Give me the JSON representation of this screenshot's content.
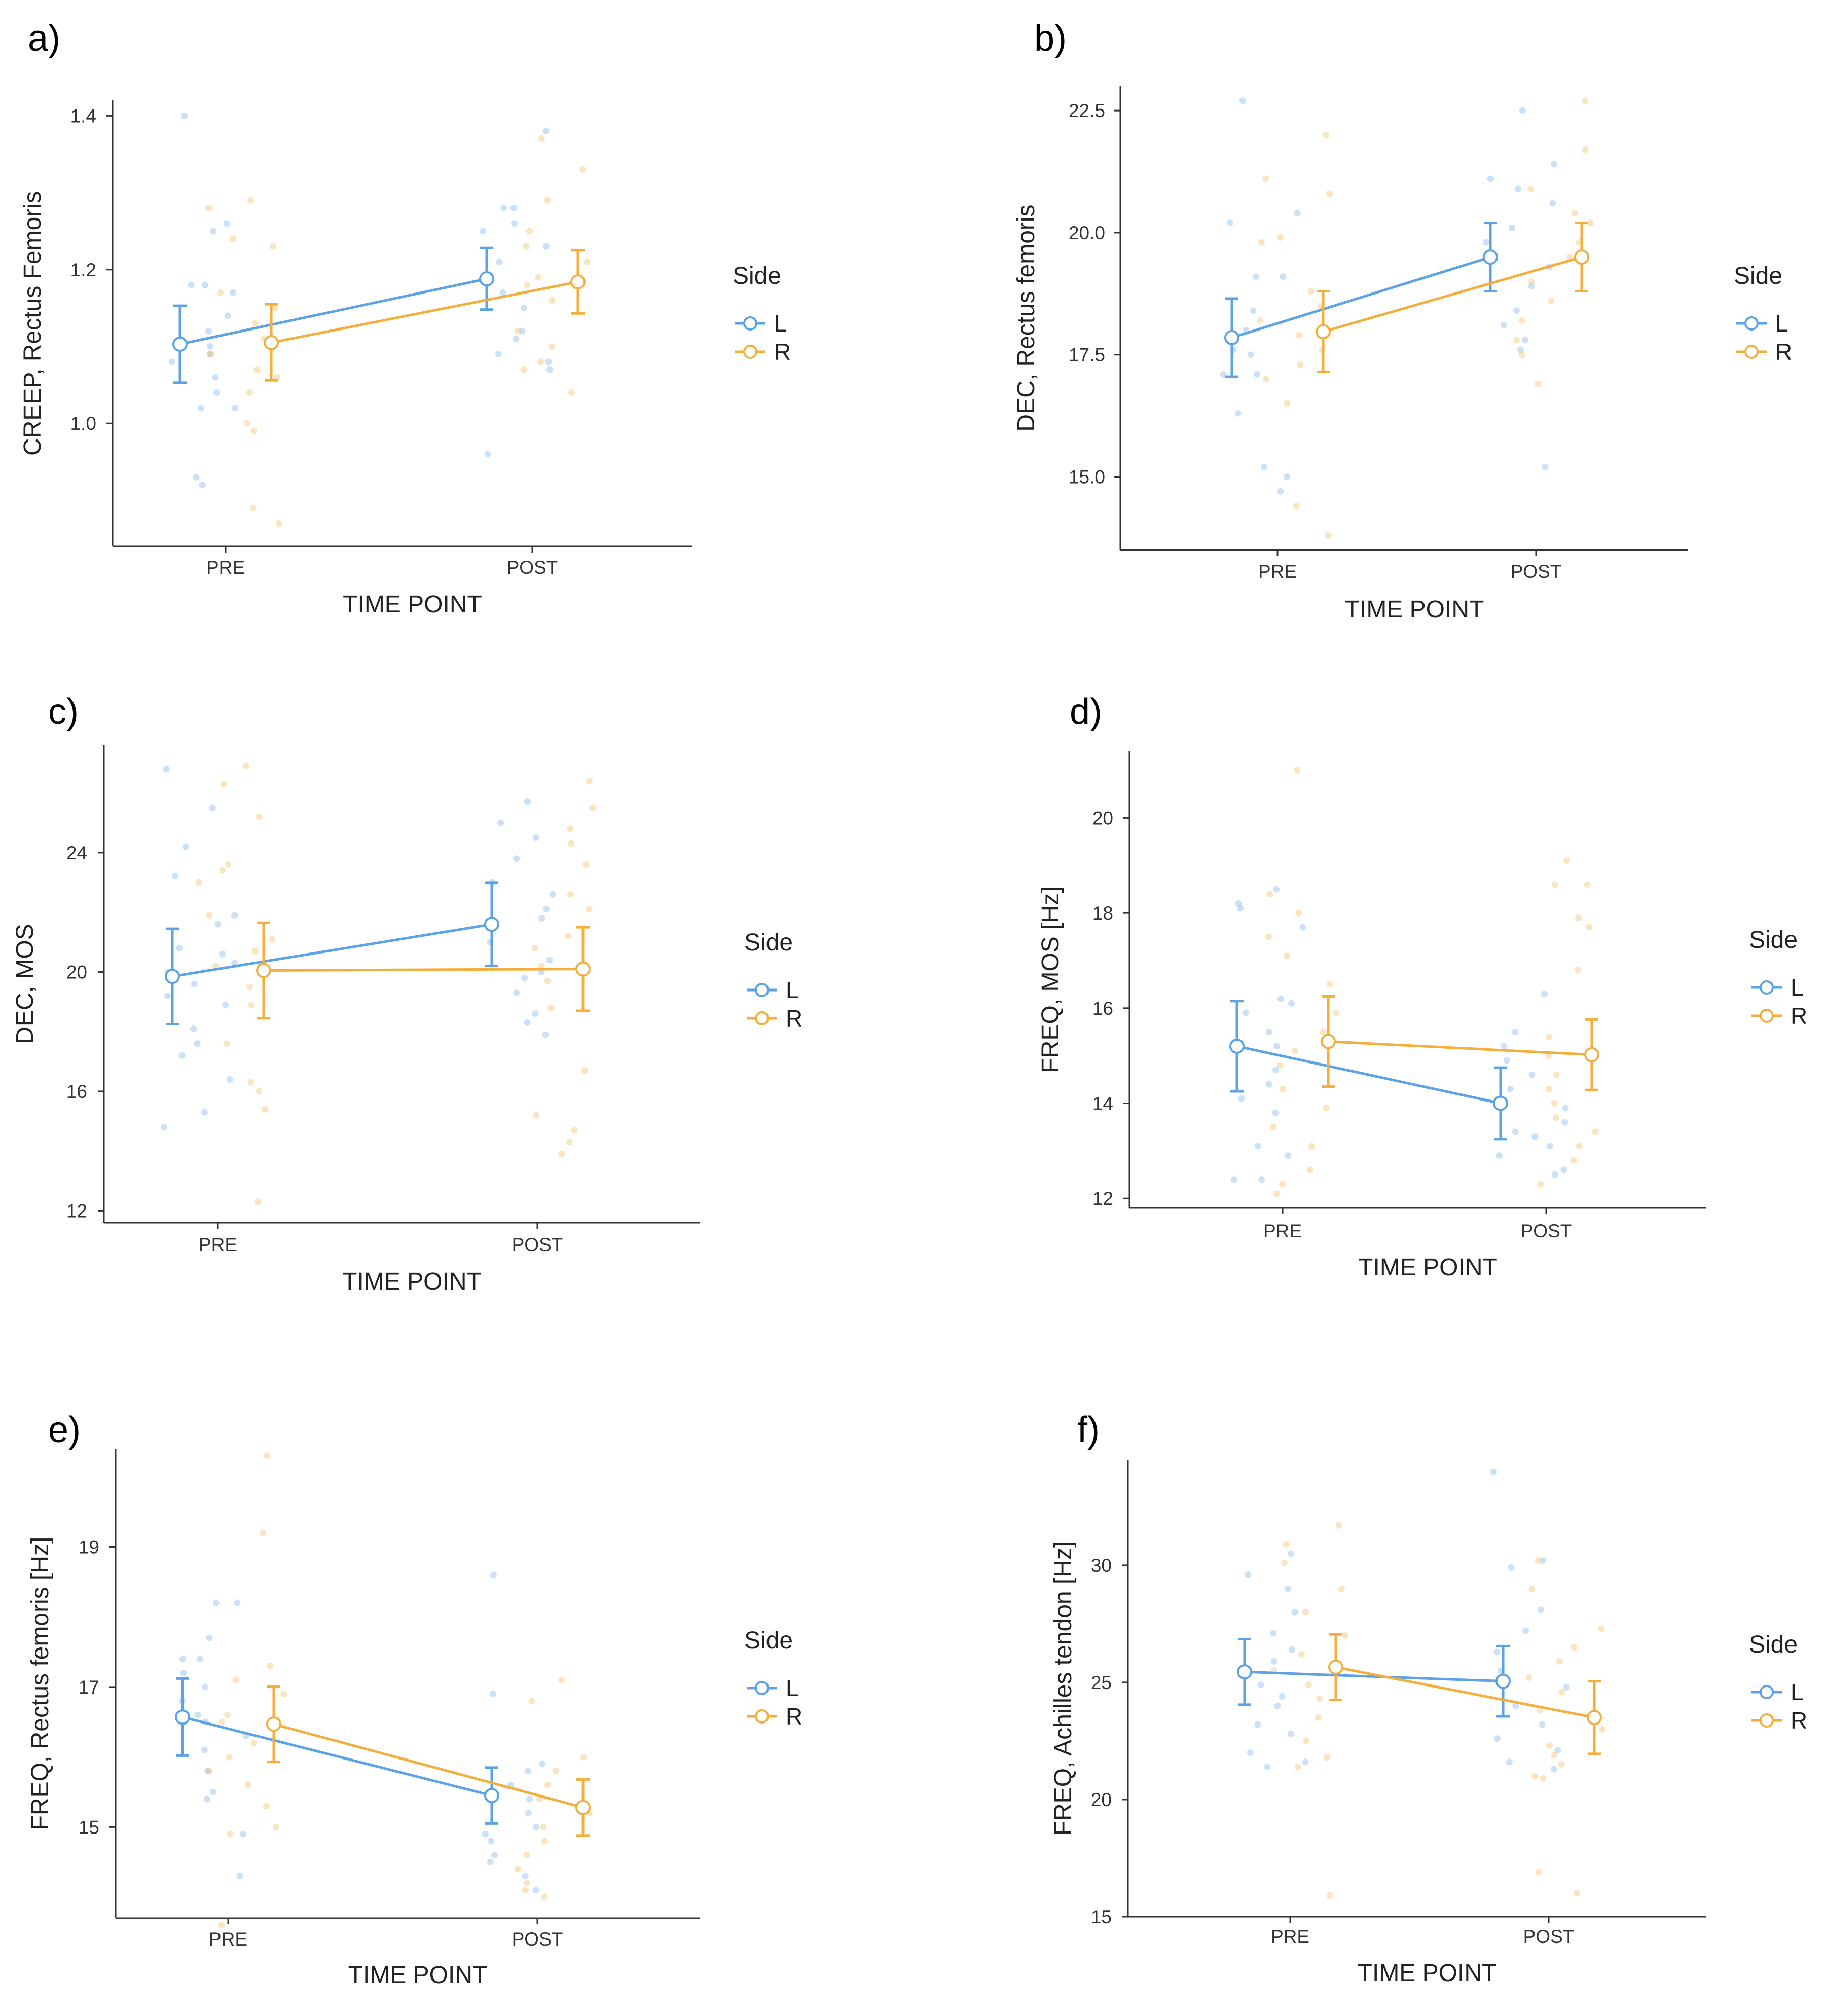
{
  "colors": {
    "L": "#5ba3e6",
    "R": "#f4ae3c",
    "axis": "#333333"
  },
  "legend": {
    "title": "Side",
    "labels": [
      "L",
      "R"
    ]
  },
  "chart_data": [
    {
      "panel": "a)",
      "type": "line",
      "xlabel": "TIME POINT",
      "ylabel": "CREEP, Rectus Femoris",
      "categories": [
        "PRE",
        "POST"
      ],
      "ylim": [
        0.84,
        1.42
      ],
      "yticks": [
        1.0,
        1.2,
        1.4
      ],
      "ytick_labels": [
        "1.0",
        "1.2",
        "1.4"
      ],
      "series": [
        {
          "name": "L",
          "values": [
            1.103,
            1.188
          ],
          "err_low": [
            1.053,
            1.148
          ],
          "err_high": [
            1.153,
            1.228
          ],
          "points": {
            "PRE": [
              1.4,
              1.26,
              1.25,
              1.18,
              1.18,
              1.17,
              1.14,
              1.12,
              1.1,
              1.09,
              1.08,
              1.06,
              1.04,
              1.02,
              1.02,
              0.93,
              0.92
            ],
            "POST": [
              1.38,
              1.28,
              1.28,
              1.26,
              1.25,
              1.23,
              1.21,
              1.17,
              1.15,
              1.12,
              1.11,
              1.09,
              1.08,
              1.07,
              0.96
            ]
          }
        },
        {
          "name": "R",
          "values": [
            1.105,
            1.184
          ],
          "err_low": [
            1.056,
            1.143
          ],
          "err_high": [
            1.155,
            1.225
          ],
          "points": {
            "PRE": [
              1.29,
              1.28,
              1.24,
              1.23,
              1.17,
              1.15,
              1.13,
              1.11,
              1.09,
              1.07,
              1.06,
              1.04,
              1.0,
              0.99,
              0.89,
              0.87
            ],
            "POST": [
              1.37,
              1.33,
              1.29,
              1.25,
              1.23,
              1.21,
              1.19,
              1.18,
              1.16,
              1.12,
              1.1,
              1.08,
              1.07,
              1.04
            ]
          }
        }
      ]
    },
    {
      "panel": "b)",
      "type": "line",
      "xlabel": "TIME POINT",
      "ylabel": "DEC, Rectus femoris",
      "categories": [
        "PRE",
        "POST"
      ],
      "ylim": [
        13.5,
        23.0
      ],
      "yticks": [
        15.0,
        17.5,
        20.0,
        22.5
      ],
      "ytick_labels": [
        "15.0",
        "17.5",
        "20.0",
        "22.5"
      ],
      "series": [
        {
          "name": "L",
          "values": [
            17.85,
            19.5
          ],
          "err_low": [
            17.05,
            18.8
          ],
          "err_high": [
            18.65,
            20.2
          ],
          "points": {
            "PRE": [
              22.7,
              20.4,
              20.2,
              19.1,
              19.1,
              18.4,
              18.0,
              17.6,
              17.5,
              17.1,
              17.1,
              16.3,
              15.2,
              15.0,
              14.7
            ],
            "POST": [
              22.5,
              21.4,
              21.1,
              20.9,
              20.6,
              20.1,
              19.8,
              19.5,
              19.3,
              18.9,
              18.4,
              18.1,
              17.8,
              17.6,
              15.2
            ]
          }
        },
        {
          "name": "R",
          "values": [
            17.97,
            19.5
          ],
          "err_low": [
            17.15,
            18.8
          ],
          "err_high": [
            18.8,
            20.2
          ],
          "points": {
            "PRE": [
              22.0,
              21.1,
              20.8,
              19.9,
              19.8,
              18.8,
              18.5,
              18.2,
              17.9,
              17.6,
              17.3,
              17.0,
              16.5,
              14.4,
              13.8
            ],
            "POST": [
              22.7,
              21.7,
              20.9,
              20.4,
              20.2,
              19.8,
              19.5,
              19.0,
              18.6,
              18.2,
              17.8,
              17.5,
              16.9
            ]
          }
        }
      ]
    },
    {
      "panel": "c)",
      "type": "line",
      "xlabel": "TIME POINT",
      "ylabel": "DEC, MOS",
      "categories": [
        "PRE",
        "POST"
      ],
      "ylim": [
        11.6,
        27.6
      ],
      "yticks": [
        12,
        16,
        20,
        24
      ],
      "ytick_labels": [
        "12",
        "16",
        "20",
        "24"
      ],
      "series": [
        {
          "name": "L",
          "values": [
            19.85,
            21.6
          ],
          "err_low": [
            18.25,
            20.2
          ],
          "err_high": [
            21.45,
            23.0
          ],
          "points": {
            "PRE": [
              26.8,
              25.5,
              24.2,
              23.2,
              21.9,
              21.6,
              20.8,
              20.6,
              20.3,
              20.0,
              19.6,
              19.2,
              18.9,
              18.1,
              17.6,
              17.2,
              16.4,
              15.3,
              14.8
            ],
            "POST": [
              25.7,
              25.0,
              24.5,
              23.8,
              23.0,
              22.6,
              22.1,
              21.8,
              21.0,
              20.4,
              20.0,
              19.8,
              19.3,
              18.6,
              18.3,
              17.9
            ]
          }
        },
        {
          "name": "R",
          "values": [
            20.05,
            20.1
          ],
          "err_low": [
            18.45,
            18.7
          ],
          "err_high": [
            21.65,
            21.5
          ],
          "points": {
            "PRE": [
              26.9,
              26.3,
              25.2,
              23.6,
              23.4,
              23.0,
              21.9,
              21.1,
              20.7,
              20.2,
              19.5,
              18.9,
              17.6,
              16.3,
              16.0,
              15.4,
              12.3
            ],
            "POST": [
              26.4,
              25.5,
              24.8,
              24.3,
              23.6,
              22.6,
              22.1,
              21.2,
              20.8,
              20.2,
              19.7,
              18.8,
              16.7,
              15.2,
              14.7,
              14.3,
              13.9
            ]
          }
        }
      ]
    },
    {
      "panel": "d)",
      "type": "line",
      "xlabel": "TIME POINT",
      "ylabel": "FREQ, MOS [Hz]",
      "categories": [
        "PRE",
        "POST"
      ],
      "ylim": [
        11.8,
        21.4
      ],
      "yticks": [
        12,
        14,
        16,
        18,
        20
      ],
      "ytick_labels": [
        "12",
        "14",
        "16",
        "18",
        "20"
      ],
      "series": [
        {
          "name": "L",
          "values": [
            15.2,
            14.0
          ],
          "err_low": [
            14.25,
            13.25
          ],
          "err_high": [
            16.15,
            14.75
          ],
          "points": {
            "PRE": [
              18.5,
              18.2,
              18.1,
              17.7,
              16.2,
              16.1,
              15.9,
              15.5,
              15.2,
              14.7,
              14.4,
              14.1,
              13.8,
              13.1,
              12.9,
              12.4,
              12.4
            ],
            "POST": [
              16.3,
              15.5,
              15.2,
              14.9,
              14.6,
              14.3,
              14.1,
              13.9,
              13.6,
              13.4,
              13.3,
              13.1,
              12.9,
              12.6,
              12.5
            ]
          }
        },
        {
          "name": "R",
          "values": [
            15.3,
            15.02
          ],
          "err_low": [
            14.35,
            14.28
          ],
          "err_high": [
            16.25,
            15.76
          ],
          "points": {
            "PRE": [
              21.0,
              18.4,
              18.0,
              17.5,
              17.1,
              16.5,
              15.9,
              15.5,
              15.1,
              14.8,
              14.3,
              13.9,
              13.5,
              13.1,
              12.6,
              12.3,
              12.1
            ],
            "POST": [
              19.1,
              18.6,
              18.6,
              17.9,
              17.7,
              16.8,
              15.4,
              15.0,
              14.6,
              14.3,
              14.0,
              13.7,
              13.4,
              13.1,
              12.8,
              12.3
            ]
          }
        }
      ]
    },
    {
      "panel": "e)",
      "type": "line",
      "xlabel": "TIME POINT",
      "ylabel": "FREQ, Rectus femoris [Hz]",
      "categories": [
        "PRE",
        "POST"
      ],
      "ylim": [
        13.7,
        20.4
      ],
      "yticks": [
        15,
        17,
        19
      ],
      "ytick_labels": [
        "15",
        "17",
        "19"
      ],
      "series": [
        {
          "name": "L",
          "values": [
            16.57,
            15.45
          ],
          "err_low": [
            16.02,
            15.05
          ],
          "err_high": [
            17.12,
            15.85
          ],
          "points": {
            "PRE": [
              18.2,
              18.2,
              17.7,
              17.4,
              17.4,
              17.2,
              17.0,
              16.8,
              16.6,
              16.5,
              16.3,
              16.1,
              15.8,
              15.5,
              15.4,
              14.9,
              14.3
            ],
            "POST": [
              18.6,
              16.9,
              15.9,
              15.8,
              15.6,
              15.4,
              15.2,
              15.0,
              14.9,
              14.8,
              14.6,
              14.5,
              14.3,
              14.1
            ]
          }
        },
        {
          "name": "R",
          "values": [
            16.47,
            15.28
          ],
          "err_low": [
            15.93,
            14.88
          ],
          "err_high": [
            17.01,
            15.68
          ],
          "points": {
            "PRE": [
              20.3,
              19.2,
              17.3,
              17.1,
              16.9,
              16.6,
              16.5,
              16.2,
              16.0,
              15.8,
              15.6,
              15.3,
              15.0,
              14.9,
              13.6
            ],
            "POST": [
              17.1,
              16.8,
              16.0,
              15.8,
              15.6,
              15.4,
              15.2,
              15.0,
              14.8,
              14.6,
              14.4,
              14.2,
              14.1,
              14.0
            ]
          }
        }
      ]
    },
    {
      "panel": "f)",
      "type": "line",
      "xlabel": "TIME POINT",
      "ylabel": "FREQ, Achilles tendon [Hz]",
      "categories": [
        "PRE",
        "POST"
      ],
      "ylim": [
        15.0,
        34.5
      ],
      "yticks": [
        15,
        20,
        25,
        30
      ],
      "ytick_labels": [
        "15",
        "20",
        "25",
        "30"
      ],
      "series": [
        {
          "name": "L",
          "values": [
            25.45,
            25.05
          ],
          "err_low": [
            24.05,
            23.55
          ],
          "err_high": [
            26.85,
            26.55
          ],
          "points": {
            "PRE": [
              30.5,
              29.6,
              29.0,
              28.0,
              27.1,
              26.4,
              25.9,
              25.4,
              24.9,
              24.4,
              24.0,
              23.2,
              22.8,
              22.0,
              21.6,
              21.4
            ],
            "POST": [
              34.0,
              30.2,
              29.9,
              28.1,
              27.2,
              26.3,
              25.5,
              24.8,
              24.0,
              23.2,
              22.6,
              22.1,
              21.6,
              21.3
            ]
          }
        },
        {
          "name": "R",
          "values": [
            25.65,
            23.5
          ],
          "err_low": [
            24.25,
            21.95
          ],
          "err_high": [
            27.05,
            25.05
          ],
          "points": {
            "PRE": [
              31.7,
              30.9,
              30.1,
              29.0,
              28.0,
              27.0,
              26.2,
              25.5,
              24.9,
              24.3,
              23.5,
              22.5,
              21.8,
              21.4,
              15.9
            ],
            "POST": [
              30.2,
              29.0,
              27.3,
              26.5,
              25.9,
              25.2,
              24.6,
              23.8,
              23.0,
              22.3,
              21.9,
              21.5,
              21.0,
              20.9,
              16.9,
              16.0
            ]
          }
        }
      ]
    }
  ]
}
